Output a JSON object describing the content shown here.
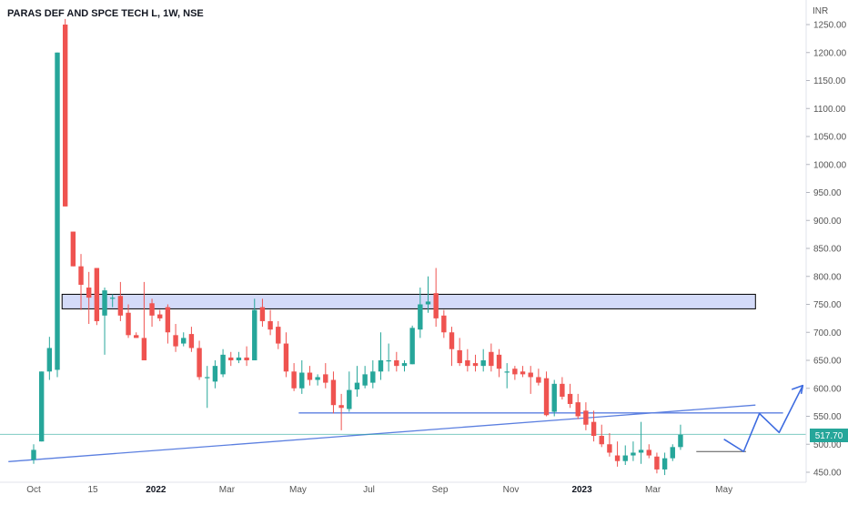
{
  "chart_data": {
    "type": "candlestick",
    "title": "PARAS DEF AND SPCE TECH L, 1W, NSE",
    "currency": "INR",
    "last_price": "517.70",
    "colors": {
      "up": "#26a69a",
      "down": "#ef5350",
      "trendline": "#5b7fe0",
      "zone_fill": "#c5cff7",
      "zone_border": "#000000",
      "last_price_line": "#26a69a",
      "axis_text": "#555555",
      "title_text": "#131722",
      "background": "#ffffff"
    },
    "y_ticks": [
      "1250.00",
      "1200.00",
      "1150.00",
      "1100.00",
      "1050.00",
      "1000.00",
      "950.00",
      "900.00",
      "850.00",
      "800.00",
      "750.00",
      "700.00",
      "650.00",
      "600.00",
      "550.00",
      "500.00",
      "450.00"
    ],
    "x_ticks": [
      {
        "label": "Oct",
        "week": 0
      },
      {
        "label": "15",
        "week": 7.5
      },
      {
        "label": "2022",
        "week": 15.5
      },
      {
        "label": "Mar",
        "week": 24.5
      },
      {
        "label": "May",
        "week": 33.5
      },
      {
        "label": "Jul",
        "week": 42.5
      },
      {
        "label": "Sep",
        "week": 51.5
      },
      {
        "label": "Nov",
        "week": 60.5
      },
      {
        "label": "2023",
        "week": 69.5
      },
      {
        "label": "Mar",
        "week": 78.5
      },
      {
        "label": "May",
        "week": 87.5
      }
    ],
    "ylim": [
      438,
      1262
    ],
    "xlim": [
      -3.5,
      96
    ],
    "candles": [
      [
        472,
        490,
        465,
        500
      ],
      [
        505,
        630,
        505,
        630
      ],
      [
        630,
        672,
        615,
        692
      ],
      [
        633,
        1200,
        620,
        1200
      ],
      [
        1250,
        925,
        925,
        1260
      ],
      [
        880,
        818,
        818,
        880
      ],
      [
        818,
        785,
        740,
        840
      ],
      [
        780,
        762,
        715,
        808
      ],
      [
        815,
        720,
        713,
        815
      ],
      [
        730,
        775,
        660,
        780
      ],
      [
        760,
        762,
        745,
        768
      ],
      [
        765,
        730,
        720,
        790
      ],
      [
        735,
        695,
        690,
        750
      ],
      [
        695,
        690,
        690,
        700
      ],
      [
        690,
        650,
        650,
        790
      ],
      [
        752,
        730,
        710,
        760
      ],
      [
        732,
        725,
        720,
        740
      ],
      [
        745,
        700,
        680,
        750
      ],
      [
        695,
        675,
        665,
        715
      ],
      [
        680,
        690,
        675,
        700
      ],
      [
        697,
        672,
        665,
        710
      ],
      [
        672,
        620,
        615,
        685
      ],
      [
        620,
        620,
        565,
        640
      ],
      [
        612,
        640,
        600,
        650
      ],
      [
        625,
        660,
        620,
        670
      ],
      [
        655,
        650,
        640,
        665
      ],
      [
        650,
        655,
        645,
        665
      ],
      [
        655,
        650,
        640,
        675
      ],
      [
        650,
        740,
        650,
        760
      ],
      [
        745,
        720,
        710,
        760
      ],
      [
        720,
        705,
        695,
        740
      ],
      [
        710,
        680,
        670,
        720
      ],
      [
        680,
        630,
        620,
        700
      ],
      [
        630,
        600,
        595,
        645
      ],
      [
        600,
        628,
        590,
        650
      ],
      [
        628,
        615,
        605,
        640
      ],
      [
        615,
        620,
        605,
        625
      ],
      [
        625,
        610,
        600,
        645
      ],
      [
        615,
        570,
        555,
        630
      ],
      [
        570,
        565,
        525,
        590
      ],
      [
        563,
        597,
        558,
        630
      ],
      [
        598,
        610,
        585,
        640
      ],
      [
        605,
        625,
        600,
        640
      ],
      [
        610,
        630,
        600,
        650
      ],
      [
        630,
        650,
        615,
        700
      ],
      [
        650,
        650,
        630,
        680
      ],
      [
        650,
        640,
        630,
        665
      ],
      [
        640,
        645,
        630,
        650
      ],
      [
        643,
        708,
        643,
        712
      ],
      [
        705,
        750,
        690,
        780
      ],
      [
        750,
        755,
        735,
        800
      ],
      [
        770,
        725,
        710,
        815
      ],
      [
        730,
        700,
        690,
        740
      ],
      [
        700,
        670,
        640,
        710
      ],
      [
        668,
        645,
        640,
        690
      ],
      [
        650,
        640,
        630,
        670
      ],
      [
        645,
        640,
        630,
        660
      ],
      [
        640,
        650,
        630,
        670
      ],
      [
        665,
        640,
        630,
        680
      ],
      [
        660,
        635,
        620,
        670
      ],
      [
        630,
        630,
        600,
        645
      ],
      [
        635,
        625,
        615,
        640
      ],
      [
        630,
        625,
        620,
        640
      ],
      [
        628,
        620,
        590,
        640
      ],
      [
        620,
        610,
        605,
        635
      ],
      [
        618,
        552,
        550,
        630
      ],
      [
        558,
        608,
        550,
        615
      ],
      [
        608,
        585,
        580,
        620
      ],
      [
        590,
        572,
        565,
        608
      ],
      [
        575,
        550,
        545,
        590
      ],
      [
        560,
        535,
        525,
        575
      ],
      [
        540,
        515,
        505,
        560
      ],
      [
        515,
        500,
        495,
        535
      ],
      [
        500,
        485,
        478,
        520
      ],
      [
        480,
        470,
        460,
        505
      ],
      [
        470,
        480,
        463,
        498
      ],
      [
        480,
        485,
        470,
        505
      ],
      [
        485,
        490,
        465,
        540
      ],
      [
        490,
        480,
        475,
        500
      ],
      [
        478,
        455,
        448,
        485
      ],
      [
        455,
        475,
        445,
        485
      ],
      [
        475,
        495,
        470,
        500
      ],
      [
        495,
        517,
        490,
        535
      ]
    ],
    "zone": {
      "x_from": 3.6,
      "x_to": 91.5,
      "y_from": 742,
      "y_to": 768
    },
    "horizontal_line": {
      "x_from": 33.6,
      "x_to": 95,
      "y": 556
    },
    "trendline": {
      "x1": -3.2,
      "y1": 469,
      "x2": 91.5,
      "y2": 570
    },
    "bottom_line": {
      "x_from": 84,
      "x_to": 90.3,
      "y": 487
    },
    "forecast_path": [
      [
        87.5,
        509
      ],
      [
        90,
        487
      ],
      [
        92,
        555
      ],
      [
        94.5,
        521
      ],
      [
        97.5,
        605
      ]
    ],
    "forecast_arrow_head": [
      [
        96.1,
        598
      ],
      [
        97.5,
        605
      ],
      [
        97.3,
        590
      ]
    ]
  }
}
